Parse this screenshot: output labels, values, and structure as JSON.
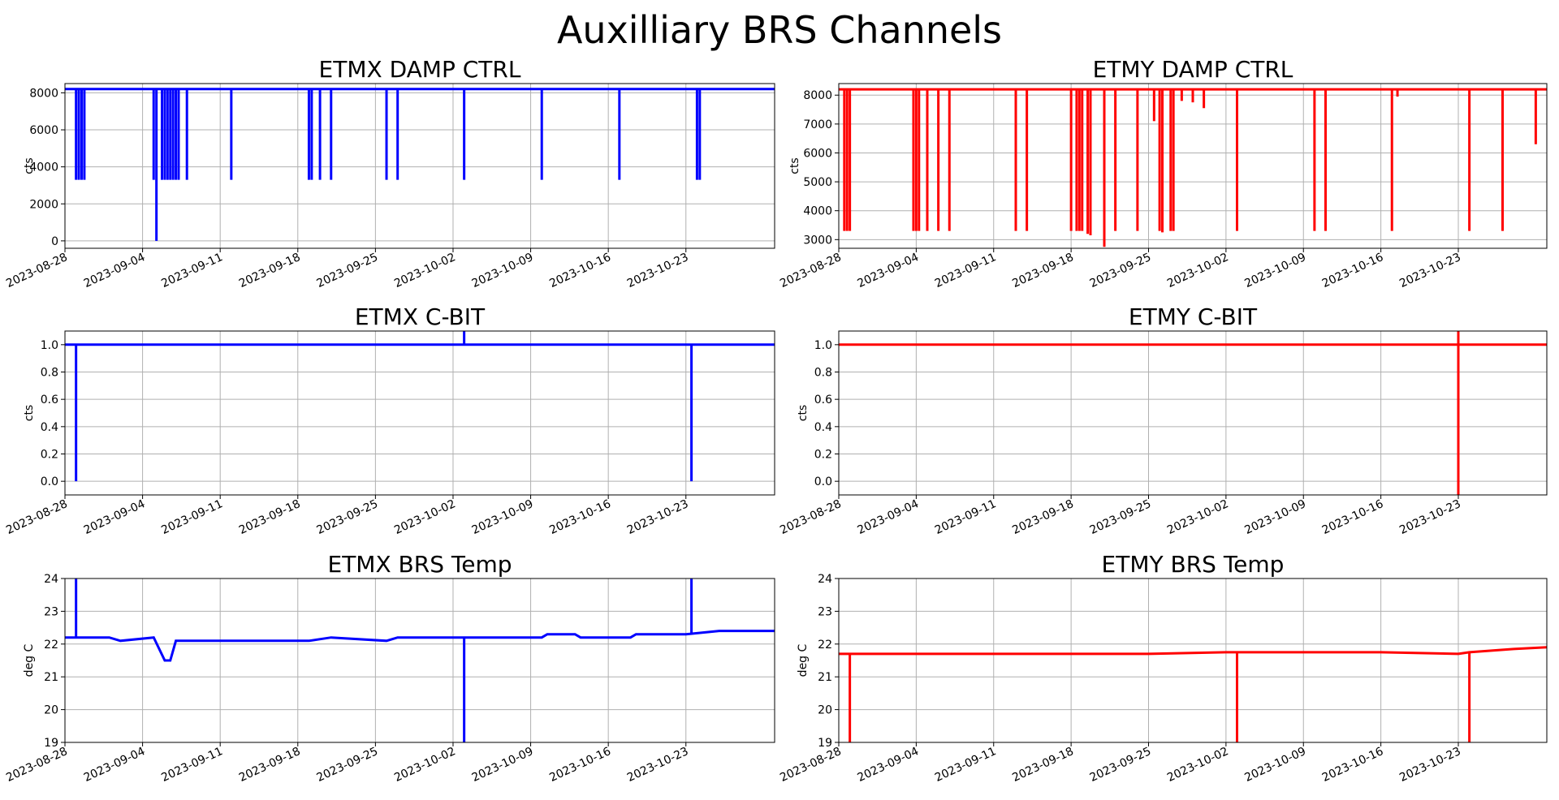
{
  "suptitle": "Auxilliary BRS Channels",
  "chart_data": [
    {
      "type": "line",
      "title": "ETMX DAMP CTRL",
      "xlabel": "",
      "ylabel": "cts",
      "color": "#0000ff",
      "x_ticks": [
        "2023-08-28",
        "2023-09-04",
        "2023-09-11",
        "2023-09-18",
        "2023-09-25",
        "2023-10-02",
        "2023-10-09",
        "2023-10-16",
        "2023-10-23"
      ],
      "xlim": [
        "2023-08-28",
        "2023-10-31"
      ],
      "ylim": [
        -400,
        8500
      ],
      "y_ticks": [
        "0",
        "2000",
        "4000",
        "6000",
        "8000"
      ],
      "y_tick_values": [
        0,
        2000,
        4000,
        6000,
        8000
      ],
      "grid": true,
      "series": [
        {
          "baseline": 8200,
          "dips": [
            {
              "x": "2023-08-29",
              "y": 3300
            },
            {
              "x": "2023-08-29T06:00",
              "y": 3300
            },
            {
              "x": "2023-08-29T12:00",
              "y": 3300
            },
            {
              "x": "2023-08-29T18:00",
              "y": 3300
            },
            {
              "x": "2023-09-05",
              "y": 3300
            },
            {
              "x": "2023-09-05T06:00",
              "y": 0
            },
            {
              "x": "2023-09-05T18:00",
              "y": 3300
            },
            {
              "x": "2023-09-06",
              "y": 3300
            },
            {
              "x": "2023-09-06T06:00",
              "y": 3300
            },
            {
              "x": "2023-09-06T12:00",
              "y": 3300
            },
            {
              "x": "2023-09-06T18:00",
              "y": 3300
            },
            {
              "x": "2023-09-07",
              "y": 3300
            },
            {
              "x": "2023-09-07T06:00",
              "y": 3300
            },
            {
              "x": "2023-09-08",
              "y": 3300
            },
            {
              "x": "2023-09-12",
              "y": 3300
            },
            {
              "x": "2023-09-19",
              "y": 3300
            },
            {
              "x": "2023-09-19T06:00",
              "y": 3300
            },
            {
              "x": "2023-09-20",
              "y": 3300
            },
            {
              "x": "2023-09-21",
              "y": 3300
            },
            {
              "x": "2023-09-26",
              "y": 3300
            },
            {
              "x": "2023-09-27",
              "y": 3300
            },
            {
              "x": "2023-10-03",
              "y": 3300
            },
            {
              "x": "2023-10-10",
              "y": 3300
            },
            {
              "x": "2023-10-17",
              "y": 3300
            },
            {
              "x": "2023-10-24",
              "y": 3300
            },
            {
              "x": "2023-10-24T06:00",
              "y": 3300
            }
          ],
          "rises": []
        }
      ]
    },
    {
      "type": "line",
      "title": "ETMY DAMP CTRL",
      "xlabel": "",
      "ylabel": "cts",
      "color": "#ff0000",
      "x_ticks": [
        "2023-08-28",
        "2023-09-04",
        "2023-09-11",
        "2023-09-18",
        "2023-09-25",
        "2023-10-02",
        "2023-10-09",
        "2023-10-16",
        "2023-10-23"
      ],
      "xlim": [
        "2023-08-28",
        "2023-10-31"
      ],
      "ylim": [
        2700,
        8400
      ],
      "y_ticks": [
        "3000",
        "4000",
        "5000",
        "6000",
        "7000",
        "8000"
      ],
      "y_tick_values": [
        3000,
        4000,
        5000,
        6000,
        7000,
        8000
      ],
      "grid": true,
      "series": [
        {
          "baseline": 8200,
          "dips": [
            {
              "x": "2023-08-28T12:00",
              "y": 3300
            },
            {
              "x": "2023-08-28T18:00",
              "y": 3300
            },
            {
              "x": "2023-08-29",
              "y": 3300
            },
            {
              "x": "2023-09-03T18:00",
              "y": 3300
            },
            {
              "x": "2023-09-04",
              "y": 3300
            },
            {
              "x": "2023-09-04T06:00",
              "y": 3300
            },
            {
              "x": "2023-09-05",
              "y": 3300
            },
            {
              "x": "2023-09-06",
              "y": 3300
            },
            {
              "x": "2023-09-07",
              "y": 3300
            },
            {
              "x": "2023-09-13",
              "y": 3300
            },
            {
              "x": "2023-09-14",
              "y": 3300
            },
            {
              "x": "2023-09-18",
              "y": 3300
            },
            {
              "x": "2023-09-18T12:00",
              "y": 3300
            },
            {
              "x": "2023-09-18T18:00",
              "y": 3300
            },
            {
              "x": "2023-09-19",
              "y": 3300
            },
            {
              "x": "2023-09-19T12:00",
              "y": 3200
            },
            {
              "x": "2023-09-19T18:00",
              "y": 3150
            },
            {
              "x": "2023-09-21",
              "y": 2750
            },
            {
              "x": "2023-09-22",
              "y": 3300
            },
            {
              "x": "2023-09-24",
              "y": 3300
            },
            {
              "x": "2023-09-25T12:00",
              "y": 7100
            },
            {
              "x": "2023-09-26",
              "y": 3300
            },
            {
              "x": "2023-09-26T06:00",
              "y": 3250
            },
            {
              "x": "2023-09-27",
              "y": 3300
            },
            {
              "x": "2023-09-27T06:00",
              "y": 3300
            },
            {
              "x": "2023-09-28",
              "y": 7800
            },
            {
              "x": "2023-09-29",
              "y": 7750
            },
            {
              "x": "2023-09-30",
              "y": 7550
            },
            {
              "x": "2023-10-03",
              "y": 3300
            },
            {
              "x": "2023-10-10",
              "y": 3300
            },
            {
              "x": "2023-10-11",
              "y": 3300
            },
            {
              "x": "2023-10-17",
              "y": 3300
            },
            {
              "x": "2023-10-17T12:00",
              "y": 7950
            },
            {
              "x": "2023-10-24",
              "y": 3300
            },
            {
              "x": "2023-10-27",
              "y": 3300
            },
            {
              "x": "2023-10-30",
              "y": 6300
            }
          ],
          "rises": []
        }
      ]
    },
    {
      "type": "line",
      "title": "ETMX C-BIT",
      "xlabel": "",
      "ylabel": "cts",
      "color": "#0000ff",
      "x_ticks": [
        "2023-08-28",
        "2023-09-04",
        "2023-09-11",
        "2023-09-18",
        "2023-09-25",
        "2023-10-02",
        "2023-10-09",
        "2023-10-16",
        "2023-10-23"
      ],
      "xlim": [
        "2023-08-28",
        "2023-10-31"
      ],
      "ylim": [
        -0.1,
        1.1
      ],
      "y_ticks": [
        "0.0",
        "0.2",
        "0.4",
        "0.6",
        "0.8",
        "1.0"
      ],
      "y_tick_values": [
        0,
        0.2,
        0.4,
        0.6,
        0.8,
        1.0
      ],
      "grid": true,
      "series": [
        {
          "baseline": 1.0,
          "dips": [
            {
              "x": "2023-08-29",
              "y": 0.0
            },
            {
              "x": "2023-10-23T12:00",
              "y": 0.0
            }
          ],
          "rises": [
            {
              "x": "2023-10-03",
              "y": 1.1
            }
          ]
        }
      ]
    },
    {
      "type": "line",
      "title": "ETMY C-BIT",
      "xlabel": "",
      "ylabel": "cts",
      "color": "#ff0000",
      "x_ticks": [
        "2023-08-28",
        "2023-09-04",
        "2023-09-11",
        "2023-09-18",
        "2023-09-25",
        "2023-10-02",
        "2023-10-09",
        "2023-10-16",
        "2023-10-23"
      ],
      "xlim": [
        "2023-08-28",
        "2023-10-31"
      ],
      "ylim": [
        -0.1,
        1.1
      ],
      "y_ticks": [
        "0.0",
        "0.2",
        "0.4",
        "0.6",
        "0.8",
        "1.0"
      ],
      "y_tick_values": [
        0,
        0.2,
        0.4,
        0.6,
        0.8,
        1.0
      ],
      "grid": true,
      "series": [
        {
          "baseline": 1.0,
          "dips": [
            {
              "x": "2023-10-23",
              "y": -0.1
            }
          ],
          "rises": [
            {
              "x": "2023-10-23",
              "y": 1.1
            }
          ]
        }
      ]
    },
    {
      "type": "line",
      "title": "ETMX BRS Temp",
      "xlabel": "",
      "ylabel": "deg C",
      "color": "#0000ff",
      "x_ticks": [
        "2023-08-28",
        "2023-09-04",
        "2023-09-11",
        "2023-09-18",
        "2023-09-25",
        "2023-10-02",
        "2023-10-09",
        "2023-10-16",
        "2023-10-23"
      ],
      "xlim": [
        "2023-08-28",
        "2023-10-31"
      ],
      "ylim": [
        19,
        24
      ],
      "y_ticks": [
        "19",
        "20",
        "21",
        "22",
        "23",
        "24"
      ],
      "y_tick_values": [
        19,
        20,
        21,
        22,
        23,
        24
      ],
      "grid": true,
      "series": [
        {
          "points": [
            {
              "x": "2023-08-28",
              "y": 22.2
            },
            {
              "x": "2023-09-01",
              "y": 22.2
            },
            {
              "x": "2023-09-02",
              "y": 22.1
            },
            {
              "x": "2023-09-05",
              "y": 22.2
            },
            {
              "x": "2023-09-06",
              "y": 21.5
            },
            {
              "x": "2023-09-06T12:00",
              "y": 21.5
            },
            {
              "x": "2023-09-07",
              "y": 22.1
            },
            {
              "x": "2023-09-19",
              "y": 22.1
            },
            {
              "x": "2023-09-21",
              "y": 22.2
            },
            {
              "x": "2023-09-26",
              "y": 22.1
            },
            {
              "x": "2023-09-27",
              "y": 22.2
            },
            {
              "x": "2023-10-10",
              "y": 22.2
            },
            {
              "x": "2023-10-10T12:00",
              "y": 22.3
            },
            {
              "x": "2023-10-13",
              "y": 22.3
            },
            {
              "x": "2023-10-13T12:00",
              "y": 22.2
            },
            {
              "x": "2023-10-18",
              "y": 22.2
            },
            {
              "x": "2023-10-18T12:00",
              "y": 22.3
            },
            {
              "x": "2023-10-23",
              "y": 22.3
            },
            {
              "x": "2023-10-26",
              "y": 22.4
            },
            {
              "x": "2023-10-31",
              "y": 22.4
            }
          ],
          "dips": [
            {
              "x": "2023-10-03",
              "y": 19.0
            }
          ],
          "rises": [
            {
              "x": "2023-08-29",
              "y": 24.0
            },
            {
              "x": "2023-10-23T12:00",
              "y": 24.0
            }
          ]
        }
      ]
    },
    {
      "type": "line",
      "title": "ETMY BRS Temp",
      "xlabel": "",
      "ylabel": "deg C",
      "color": "#ff0000",
      "x_ticks": [
        "2023-08-28",
        "2023-09-04",
        "2023-09-11",
        "2023-09-18",
        "2023-09-25",
        "2023-10-02",
        "2023-10-09",
        "2023-10-16",
        "2023-10-23"
      ],
      "xlim": [
        "2023-08-28",
        "2023-10-31"
      ],
      "ylim": [
        19,
        24
      ],
      "y_ticks": [
        "19",
        "20",
        "21",
        "22",
        "23",
        "24"
      ],
      "y_tick_values": [
        19,
        20,
        21,
        22,
        23,
        24
      ],
      "grid": true,
      "series": [
        {
          "points": [
            {
              "x": "2023-08-28",
              "y": 21.7
            },
            {
              "x": "2023-09-11",
              "y": 21.7
            },
            {
              "x": "2023-09-25",
              "y": 21.7
            },
            {
              "x": "2023-10-02",
              "y": 21.75
            },
            {
              "x": "2023-10-09",
              "y": 21.75
            },
            {
              "x": "2023-10-16",
              "y": 21.75
            },
            {
              "x": "2023-10-23",
              "y": 21.7
            },
            {
              "x": "2023-10-24",
              "y": 21.75
            },
            {
              "x": "2023-10-26",
              "y": 21.8
            },
            {
              "x": "2023-10-28",
              "y": 21.85
            },
            {
              "x": "2023-10-31",
              "y": 21.9
            }
          ],
          "dips": [
            {
              "x": "2023-08-29",
              "y": 19.0
            },
            {
              "x": "2023-10-03",
              "y": 19.0
            },
            {
              "x": "2023-10-24",
              "y": 19.0
            }
          ],
          "rises": []
        }
      ]
    }
  ]
}
